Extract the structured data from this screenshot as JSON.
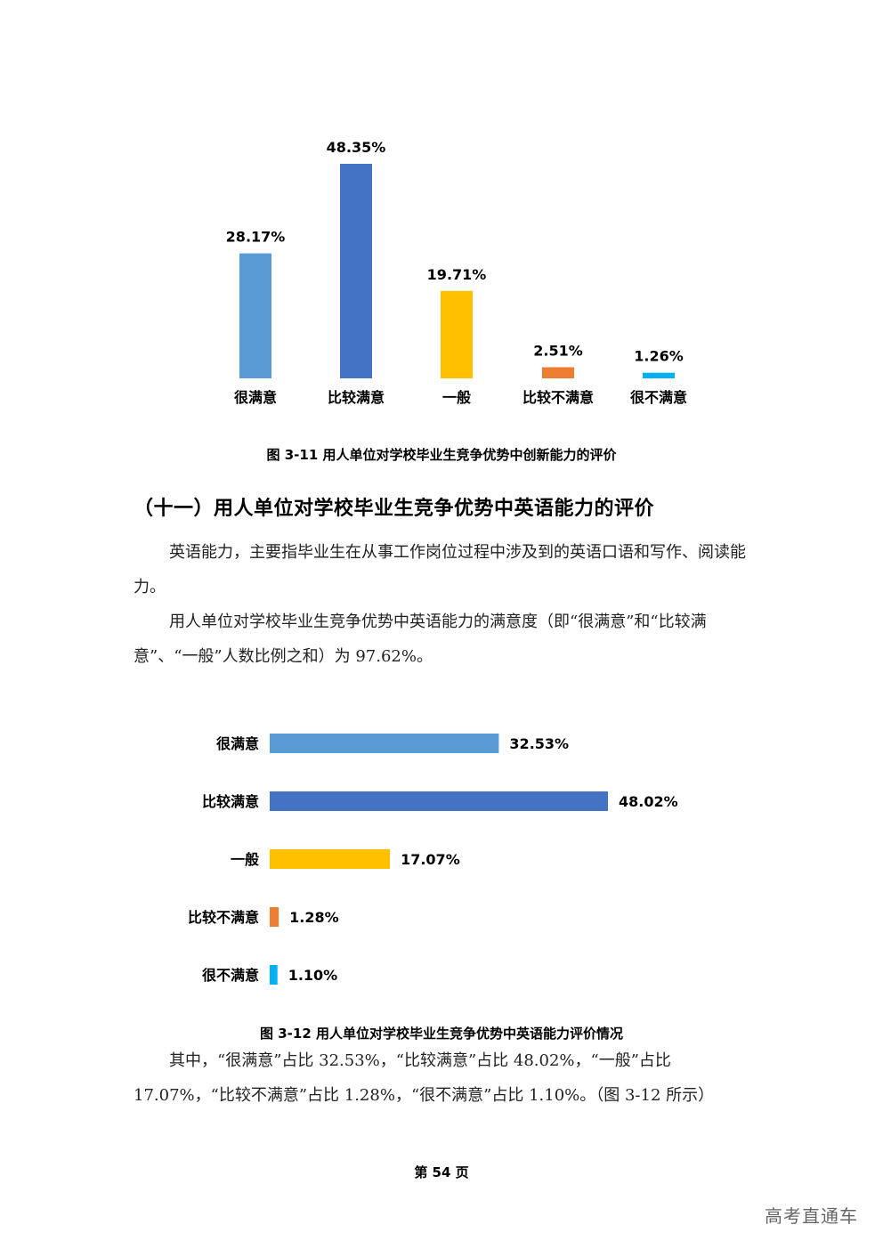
{
  "chart_data": [
    {
      "type": "bar",
      "orientation": "vertical",
      "categories": [
        "很满意",
        "比较满意",
        "一般",
        "比较不满意",
        "很不满意"
      ],
      "values": [
        28.17,
        48.35,
        19.71,
        2.51,
        1.26
      ],
      "value_labels": [
        "28.17%",
        "48.35%",
        "19.71%",
        "2.51%",
        "1.26%"
      ],
      "colors": [
        "#5B9BD5",
        "#4472C4",
        "#FFC000",
        "#ED7D31",
        "#00B0F0"
      ],
      "title": "",
      "ylim": [
        0,
        50
      ],
      "grid": false
    },
    {
      "type": "bar",
      "orientation": "horizontal",
      "categories": [
        "很满意",
        "比较满意",
        "一般",
        "比较不满意",
        "很不满意"
      ],
      "values": [
        32.53,
        48.02,
        17.07,
        1.28,
        1.1
      ],
      "value_labels": [
        "32.53%",
        "48.02%",
        "17.07%",
        "1.28%",
        "1.10%"
      ],
      "colors": [
        "#5B9BD5",
        "#4472C4",
        "#FFC000",
        "#ED7D31",
        "#00B0F0"
      ],
      "title": "",
      "xlim": [
        0,
        50
      ],
      "grid": false
    }
  ],
  "caption1": "图 3-11 用人单位对学校毕业生竞争优势中创新能力的评价",
  "heading": "（十一）用人单位对学校毕业生竞争优势中英语能力的评价",
  "para1": "英语能力，主要指毕业生在从事工作岗位过程中涉及到的英语口语和写作、阅读能力。",
  "para2": "用人单位对学校毕业生竞争优势中英语能力的满意度（即“很满意”和“比较满意”、“一般”人数比例之和）为 97.62%。",
  "caption2": "图 3-12 用人单位对学校毕业生竞争优势中英语能力评价情况",
  "para3": "其中，“很满意”占比 32.53%，“比较满意”占比 48.02%，“一般”占比 17.07%，“比较不满意”占比 1.28%，“很不满意”占比 1.10%。（图 3-12 所示）",
  "page_number": "第 54 页",
  "watermark": "高考直通车"
}
